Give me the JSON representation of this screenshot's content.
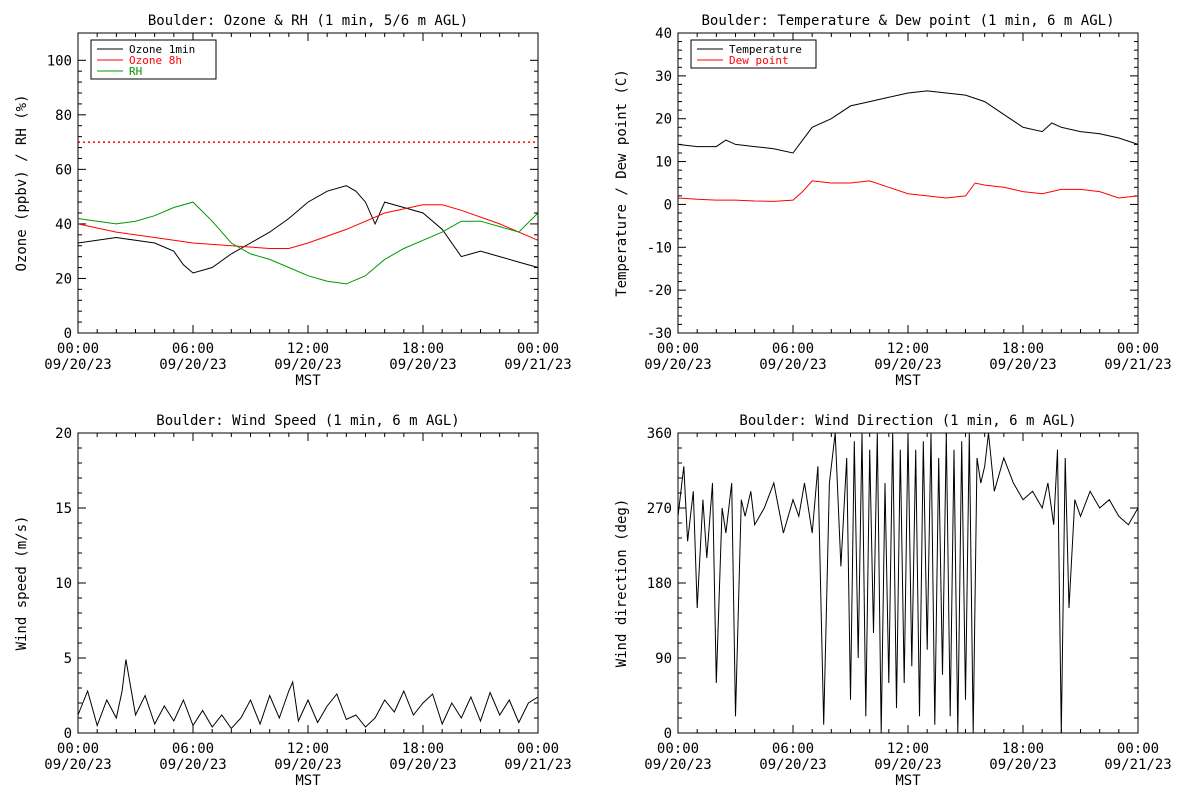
{
  "chart_data": [
    {
      "id": "p1",
      "type": "line",
      "title": "Boulder: Ozone & RH (1 min, 5/6 m AGL)",
      "ylabel": "Ozone (ppbv) / RH (%)",
      "xlabel": "MST",
      "xlim": [
        "09/20/23 00:00",
        "09/21/23 00:00"
      ],
      "ylim": [
        0,
        110
      ],
      "yticks": [
        0,
        20,
        40,
        60,
        80,
        100
      ],
      "xticks": [
        {
          "top": "00:00",
          "bottom": "09/20/23"
        },
        {
          "top": "06:00",
          "bottom": "09/20/23"
        },
        {
          "top": "12:00",
          "bottom": "09/20/23"
        },
        {
          "top": "18:00",
          "bottom": "09/20/23"
        },
        {
          "top": "00:00",
          "bottom": "09/21/23"
        }
      ],
      "legend_position": "top-left",
      "reference_line": {
        "y": 70,
        "color": "#ff0000",
        "style": "dotted"
      },
      "series": [
        {
          "name": "Ozone 1min",
          "color": "#000000",
          "x": [
            0,
            1,
            2,
            3,
            4,
            5,
            5.5,
            6,
            7,
            8,
            9,
            10,
            11,
            12,
            13,
            14,
            14.5,
            15,
            15.5,
            16,
            17,
            18,
            19,
            20,
            21,
            22,
            23,
            24
          ],
          "y": [
            33,
            34,
            35,
            34,
            33,
            30,
            25,
            22,
            24,
            29,
            33,
            37,
            42,
            48,
            52,
            54,
            52,
            48,
            40,
            48,
            46,
            44,
            38,
            28,
            30,
            28,
            26,
            24
          ]
        },
        {
          "name": "Ozone 8h",
          "color": "#ff0000",
          "x": [
            0,
            2,
            4,
            6,
            8,
            10,
            11,
            12,
            14,
            16,
            18,
            19,
            20,
            22,
            24
          ],
          "y": [
            40,
            37,
            35,
            33,
            32,
            31,
            31,
            33,
            38,
            44,
            47,
            47,
            45,
            40,
            34
          ]
        },
        {
          "name": "RH",
          "color": "#009900",
          "x": [
            0,
            1,
            2,
            3,
            4,
            5,
            6,
            7,
            8,
            9,
            10,
            11,
            12,
            13,
            14,
            15,
            16,
            17,
            18,
            19,
            20,
            21,
            22,
            23,
            24
          ],
          "y": [
            42,
            41,
            40,
            41,
            43,
            46,
            48,
            41,
            33,
            29,
            27,
            24,
            21,
            19,
            18,
            21,
            27,
            31,
            34,
            37,
            41,
            41,
            39,
            37,
            44
          ]
        }
      ]
    },
    {
      "id": "p2",
      "type": "line",
      "title": "Boulder: Temperature & Dew point (1 min, 6 m AGL)",
      "ylabel": "Temperature / Dew point (C)",
      "xlabel": "MST",
      "xlim": [
        "09/20/23 00:00",
        "09/21/23 00:00"
      ],
      "ylim": [
        -30,
        40
      ],
      "yticks": [
        -30,
        -20,
        -10,
        0,
        10,
        20,
        30,
        40
      ],
      "xticks": [
        {
          "top": "00:00",
          "bottom": "09/20/23"
        },
        {
          "top": "06:00",
          "bottom": "09/20/23"
        },
        {
          "top": "12:00",
          "bottom": "09/20/23"
        },
        {
          "top": "18:00",
          "bottom": "09/20/23"
        },
        {
          "top": "00:00",
          "bottom": "09/21/23"
        }
      ],
      "legend_position": "top-left",
      "series": [
        {
          "name": "Temperature",
          "color": "#000000",
          "x": [
            0,
            1,
            2,
            2.5,
            3,
            4,
            5,
            6,
            6.5,
            7,
            8,
            9,
            10,
            11,
            12,
            13,
            14,
            15,
            16,
            17,
            18,
            19,
            19.5,
            20,
            21,
            22,
            23,
            24
          ],
          "y": [
            14,
            13.5,
            13.5,
            15,
            14,
            13.5,
            13,
            12,
            15,
            18,
            20,
            23,
            24,
            25,
            26,
            26.5,
            26,
            25.5,
            24,
            21,
            18,
            17,
            19,
            18,
            17,
            16.5,
            15.5,
            14
          ]
        },
        {
          "name": "Dew point",
          "color": "#ff0000",
          "x": [
            0,
            1,
            2,
            3,
            4,
            5,
            6,
            6.5,
            7,
            8,
            9,
            10,
            11,
            12,
            13,
            14,
            15,
            15.5,
            16,
            17,
            18,
            19,
            20,
            21,
            22,
            23,
            24
          ],
          "y": [
            1.5,
            1.2,
            1,
            1,
            0.8,
            0.7,
            1,
            3,
            5.5,
            5,
            5,
            5.5,
            4,
            2.5,
            2,
            1.5,
            2,
            5,
            4.5,
            4,
            3,
            2.5,
            3.5,
            3.5,
            3,
            1.5,
            2
          ]
        }
      ]
    },
    {
      "id": "p3",
      "type": "line",
      "title": "Boulder: Wind Speed (1 min, 6 m AGL)",
      "ylabel": "Wind speed (m/s)",
      "xlabel": "MST",
      "xlim": [
        "09/20/23 00:00",
        "09/21/23 00:00"
      ],
      "ylim": [
        0,
        20
      ],
      "yticks": [
        0,
        5,
        10,
        15,
        20
      ],
      "xticks": [
        {
          "top": "00:00",
          "bottom": "09/20/23"
        },
        {
          "top": "06:00",
          "bottom": "09/20/23"
        },
        {
          "top": "12:00",
          "bottom": "09/20/23"
        },
        {
          "top": "18:00",
          "bottom": "09/20/23"
        },
        {
          "top": "00:00",
          "bottom": "09/21/23"
        }
      ],
      "series": [
        {
          "name": "",
          "color": "#000000",
          "x": [
            0,
            0.5,
            1,
            1.5,
            2,
            2.3,
            2.5,
            3,
            3.5,
            4,
            4.5,
            5,
            5.5,
            6,
            6.5,
            7,
            7.5,
            8,
            8.5,
            9,
            9.5,
            10,
            10.5,
            11,
            11.2,
            11.5,
            12,
            12.5,
            13,
            13.5,
            14,
            14.5,
            15,
            15.5,
            16,
            16.5,
            17,
            17.5,
            18,
            18.5,
            19,
            19.5,
            20,
            20.5,
            21,
            21.5,
            22,
            22.5,
            23,
            23.5,
            24
          ],
          "y": [
            1.2,
            2.8,
            0.5,
            2.2,
            1.0,
            2.8,
            4.9,
            1.2,
            2.5,
            0.6,
            1.8,
            0.8,
            2.2,
            0.5,
            1.5,
            0.4,
            1.2,
            0.3,
            1.0,
            2.2,
            0.6,
            2.5,
            1.0,
            2.8,
            3.4,
            0.8,
            2.2,
            0.7,
            1.8,
            2.6,
            0.9,
            1.2,
            0.4,
            1.0,
            2.2,
            1.4,
            2.8,
            1.2,
            2.0,
            2.6,
            0.6,
            2.0,
            1.0,
            2.4,
            0.8,
            2.7,
            1.2,
            2.2,
            0.7,
            2.0,
            2.4
          ]
        }
      ]
    },
    {
      "id": "p4",
      "type": "line",
      "title": "Boulder: Wind Direction (1 min, 6 m AGL)",
      "ylabel": "Wind direction (deg)",
      "xlabel": "MST",
      "xlim": [
        "09/20/23 00:00",
        "09/21/23 00:00"
      ],
      "ylim": [
        0,
        360
      ],
      "yticks": [
        0,
        90,
        180,
        270,
        360
      ],
      "xticks": [
        {
          "top": "00:00",
          "bottom": "09/20/23"
        },
        {
          "top": "06:00",
          "bottom": "09/20/23"
        },
        {
          "top": "12:00",
          "bottom": "09/20/23"
        },
        {
          "top": "18:00",
          "bottom": "09/20/23"
        },
        {
          "top": "00:00",
          "bottom": "09/21/23"
        }
      ],
      "series": [
        {
          "name": "",
          "color": "#000000",
          "x": [
            0,
            0.3,
            0.5,
            0.8,
            1,
            1.3,
            1.5,
            1.8,
            2,
            2.3,
            2.5,
            2.8,
            3,
            3.3,
            3.5,
            3.8,
            4,
            4.5,
            5,
            5.5,
            6,
            6.3,
            6.6,
            7,
            7.3,
            7.6,
            7.9,
            8.2,
            8.5,
            8.8,
            9,
            9.2,
            9.4,
            9.6,
            9.8,
            10,
            10.2,
            10.4,
            10.6,
            10.8,
            11,
            11.2,
            11.4,
            11.6,
            11.8,
            12,
            12.2,
            12.4,
            12.6,
            12.8,
            13,
            13.2,
            13.4,
            13.6,
            13.8,
            14,
            14.2,
            14.4,
            14.6,
            14.8,
            15,
            15.2,
            15.4,
            15.6,
            15.8,
            16,
            16.2,
            16.5,
            17,
            17.5,
            18,
            18.5,
            19,
            19.3,
            19.6,
            19.8,
            20,
            20.2,
            20.4,
            20.7,
            21,
            21.5,
            22,
            22.5,
            23,
            23.5,
            24
          ],
          "y": [
            260,
            320,
            230,
            290,
            150,
            280,
            210,
            300,
            60,
            270,
            240,
            300,
            20,
            280,
            260,
            290,
            250,
            270,
            300,
            240,
            280,
            260,
            300,
            240,
            320,
            10,
            300,
            360,
            200,
            330,
            40,
            350,
            90,
            360,
            20,
            340,
            120,
            360,
            0,
            300,
            60,
            360,
            30,
            340,
            60,
            360,
            80,
            340,
            20,
            350,
            100,
            360,
            10,
            330,
            70,
            360,
            20,
            340,
            0,
            350,
            40,
            360,
            0,
            330,
            300,
            320,
            360,
            290,
            330,
            300,
            280,
            290,
            270,
            300,
            250,
            340,
            0,
            330,
            150,
            280,
            260,
            290,
            270,
            280,
            260,
            250,
            270
          ]
        }
      ]
    }
  ]
}
